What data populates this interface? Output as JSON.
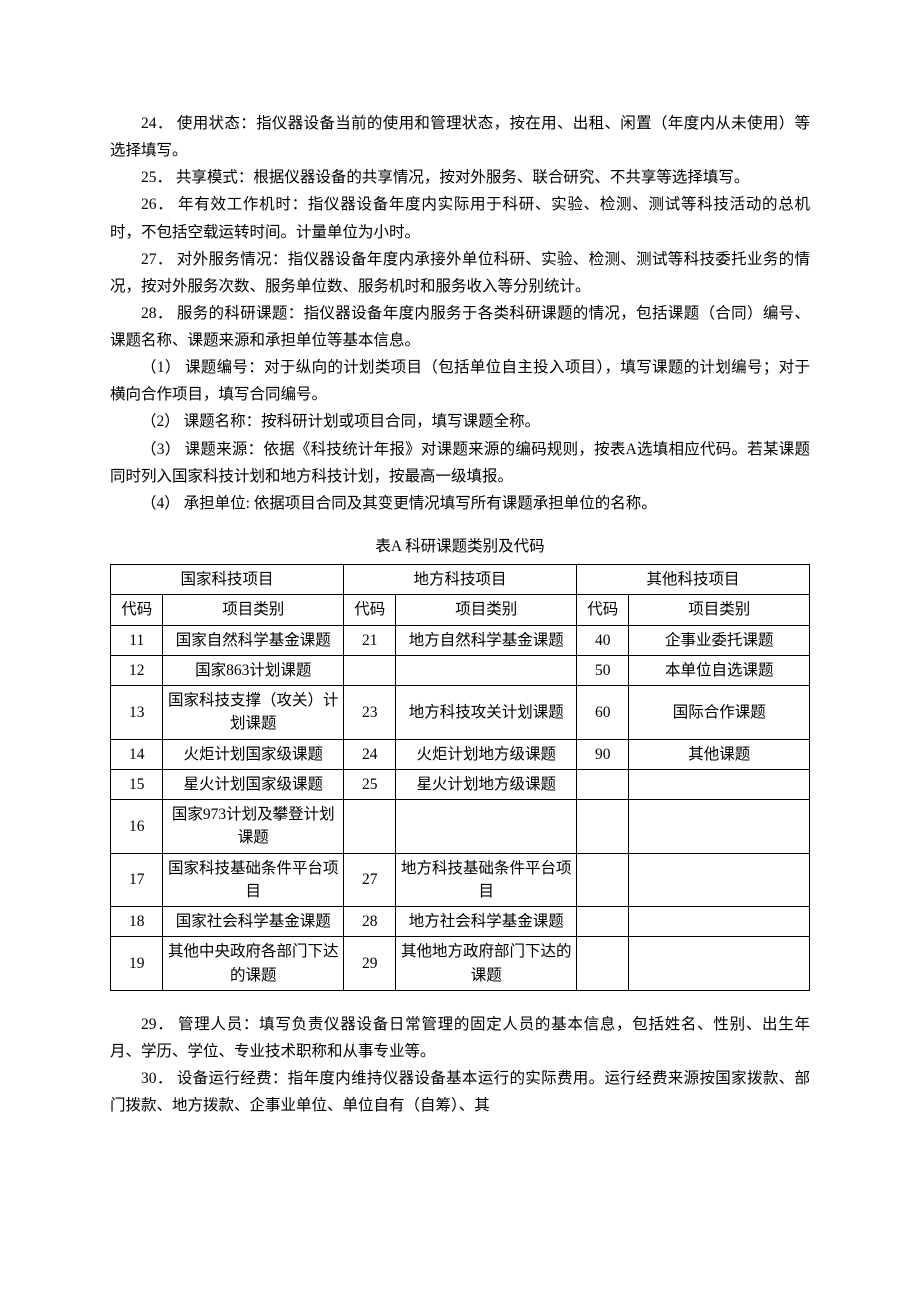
{
  "paragraphs": {
    "p24": "24．  使用状态：指仪器设备当前的使用和管理状态，按在用、出租、闲置（年度内从未使用）等选择填写。",
    "p25": "25．  共享模式：根据仪器设备的共享情况，按对外服务、联合研究、不共享等选择填写。",
    "p26": "26．  年有效工作机时：指仪器设备年度内实际用于科研、实验、检测、测试等科技活动的总机时，不包括空载运转时间。计量单位为小时。",
    "p27": "27．  对外服务情况：指仪器设备年度内承接外单位科研、实验、检测、测试等科技委托业务的情况，按对外服务次数、服务单位数、服务机时和服务收入等分别统计。",
    "p28": "28．  服务的科研课题：指仪器设备年度内服务于各类科研课题的情况，包括课题（合同）编号、课题名称、课题来源和承担单位等基本信息。",
    "p28_1": "（1）  课题编号：对于纵向的计划类项目（包括单位自主投入项目），填写课题的计划编号；对于横向合作项目，填写合同编号。",
    "p28_2": "（2）  课题名称：按科研计划或项目合同，填写课题全称。",
    "p28_3": "（3）  课题来源：依据《科技统计年报》对课题来源的编码规则，按表A选填相应代码。若某课题同时列入国家科技计划和地方科技计划，按最高一级填报。",
    "p28_4": "（4）  承担单位: 依据项目合同及其变更情况填写所有课题承担单位的名称。",
    "p29": "29．  管理人员：填写负责仪器设备日常管理的固定人员的基本信息，包括姓名、性别、出生年月、学历、学位、专业技术职称和从事专业等。",
    "p30": "30．  设备运行经费：指年度内维持仪器设备基本运行的实际费用。运行经费来源按国家拨款、部门拨款、地方拨款、企事业单位、单位自有（自筹）、其"
  },
  "table": {
    "caption": "表A  科研课题类别及代码",
    "header_groups": [
      "国家科技项目",
      "地方科技项目",
      "其他科技项目"
    ],
    "sub_headers": {
      "code": "代码",
      "category": "项目类别"
    },
    "rows": [
      {
        "c1": "11",
        "n1": "国家自然科学基金课题",
        "c2": "21",
        "n2": "地方自然科学基金课题",
        "c3": "40",
        "n3": "企事业委托课题"
      },
      {
        "c1": "12",
        "n1": "国家863计划课题",
        "c2": "",
        "n2": "",
        "c3": "50",
        "n3": "本单位自选课题"
      },
      {
        "c1": "13",
        "n1": "国家科技支撑（攻关）计划课题",
        "c2": "23",
        "n2": "地方科技攻关计划课题",
        "c3": "60",
        "n3": "国际合作课题"
      },
      {
        "c1": "14",
        "n1": "火炬计划国家级课题",
        "c2": "24",
        "n2": "火炬计划地方级课题",
        "c3": "90",
        "n3": "其他课题"
      },
      {
        "c1": "15",
        "n1": "星火计划国家级课题",
        "c2": "25",
        "n2": "星火计划地方级课题",
        "c3": "",
        "n3": ""
      },
      {
        "c1": "16",
        "n1": "国家973计划及攀登计划课题",
        "c2": "",
        "n2": "",
        "c3": "",
        "n3": ""
      },
      {
        "c1": "17",
        "n1": "国家科技基础条件平台项目",
        "c2": "27",
        "n2": "地方科技基础条件平台项目",
        "c3": "",
        "n3": ""
      },
      {
        "c1": "18",
        "n1": "国家社会科学基金课题",
        "c2": "28",
        "n2": "地方社会科学基金课题",
        "c3": "",
        "n3": ""
      },
      {
        "c1": "19",
        "n1": "其他中央政府各部门下达的课题",
        "c2": "29",
        "n2": "其他地方政府部门下达的课题",
        "c3": "",
        "n3": ""
      }
    ]
  }
}
